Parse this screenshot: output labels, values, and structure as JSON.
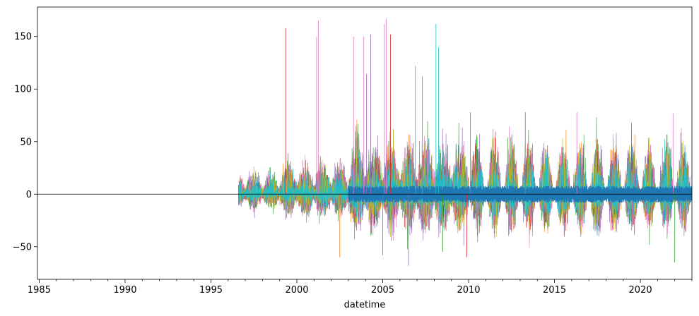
{
  "chart_data": {
    "type": "line",
    "title": "",
    "xlabel": "datetime",
    "ylabel": "",
    "xlim": [
      1984.9,
      2023.0
    ],
    "ylim": [
      -81,
      178
    ],
    "x_ticks": [
      1985,
      1990,
      1995,
      2000,
      2005,
      2010,
      2015,
      2020
    ],
    "x_tick_labels": [
      "1985",
      "1990",
      "1995",
      "2000",
      "2005",
      "2010",
      "2015",
      "2020"
    ],
    "y_ticks": [
      -50,
      0,
      50,
      100,
      150
    ],
    "y_tick_labels": [
      "−50",
      "0",
      "50",
      "100",
      "150"
    ],
    "zero_line": 0,
    "grid": false,
    "legend": "none",
    "data_start": 1996.6,
    "data_end": 2023.0,
    "series": [
      {
        "color": "#1f77b4",
        "amp": 22
      },
      {
        "color": "#ff7f0e",
        "amp": 26
      },
      {
        "color": "#2ca02c",
        "amp": 28
      },
      {
        "color": "#d62728",
        "amp": 24
      },
      {
        "color": "#9467bd",
        "amp": 30
      },
      {
        "color": "#8c564b",
        "amp": 20
      },
      {
        "color": "#e377c2",
        "amp": 26
      },
      {
        "color": "#7f7f7f",
        "amp": 22
      },
      {
        "color": "#bcbd22",
        "amp": 24
      },
      {
        "color": "#17becf",
        "amp": 22
      }
    ],
    "peaks": [
      {
        "x": 1999.35,
        "y": 158,
        "color": "#d62728"
      },
      {
        "x": 2001.15,
        "y": 150,
        "color": "#e377c2"
      },
      {
        "x": 2001.25,
        "y": 165,
        "color": "#e377c2"
      },
      {
        "x": 2003.3,
        "y": 150,
        "color": "#e377c2"
      },
      {
        "x": 2003.9,
        "y": 150,
        "color": "#e377c2"
      },
      {
        "x": 2004.05,
        "y": 114,
        "color": "#9467bd"
      },
      {
        "x": 2004.3,
        "y": 152,
        "color": "#9467bd"
      },
      {
        "x": 2005.1,
        "y": 162,
        "color": "#e377c2"
      },
      {
        "x": 2005.2,
        "y": 167,
        "color": "#e377c2"
      },
      {
        "x": 2005.45,
        "y": 152,
        "color": "#d62728"
      },
      {
        "x": 2006.9,
        "y": 122,
        "color": "#17becf"
      },
      {
        "x": 2007.3,
        "y": 112,
        "color": "#17becf"
      },
      {
        "x": 2008.1,
        "y": 162,
        "color": "#17becf"
      },
      {
        "x": 2008.25,
        "y": 140,
        "color": "#17becf"
      },
      {
        "x": 2002.5,
        "y": -60,
        "color": "#ff7f0e"
      },
      {
        "x": 2005.0,
        "y": -58,
        "color": "#9467bd"
      },
      {
        "x": 2006.5,
        "y": -68,
        "color": "#9467bd"
      },
      {
        "x": 2008.5,
        "y": -55,
        "color": "#2ca02c"
      },
      {
        "x": 2009.9,
        "y": -60,
        "color": "#d62728"
      },
      {
        "x": 2022.0,
        "y": -65,
        "color": "#2ca02c"
      },
      {
        "x": 2016.3,
        "y": 78,
        "color": "#e377c2"
      },
      {
        "x": 2013.3,
        "y": 78,
        "color": "#9467bd"
      },
      {
        "x": 2021.9,
        "y": 77,
        "color": "#e377c2"
      },
      {
        "x": 2010.1,
        "y": 78,
        "color": "#9467bd"
      }
    ]
  }
}
